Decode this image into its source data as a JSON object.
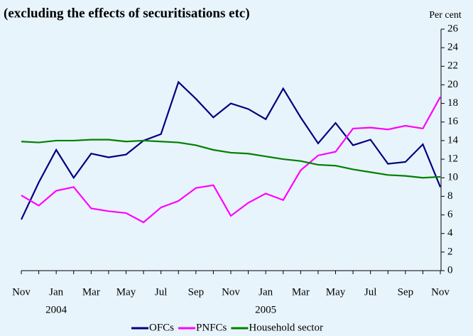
{
  "chart_data": {
    "type": "line",
    "subtitle": "(excluding the effects of securitisations etc)",
    "y_label": "Per cent",
    "categories": [
      [
        "Nov"
      ],
      null,
      [
        "Jan",
        "2004"
      ],
      null,
      [
        "Mar"
      ],
      null,
      [
        "May"
      ],
      null,
      [
        "Jul"
      ],
      null,
      [
        "Sep"
      ],
      null,
      [
        "Nov"
      ],
      null,
      [
        "Jan",
        "2005"
      ],
      null,
      [
        "Mar"
      ],
      null,
      [
        "May"
      ],
      null,
      [
        "Jul"
      ],
      null,
      [
        "Sep"
      ],
      null,
      [
        "Nov"
      ]
    ],
    "series": [
      {
        "name": "OFCs",
        "color": "#000080",
        "values": [
          5.5,
          9.5,
          13.0,
          10.0,
          12.6,
          12.2,
          12.5,
          14.0,
          14.7,
          20.3,
          18.5,
          16.5,
          18.0,
          17.4,
          16.3,
          19.6,
          16.5,
          13.7,
          15.9,
          13.5,
          14.1,
          11.5,
          11.7,
          13.6,
          9.0
        ]
      },
      {
        "name": "PNFCs",
        "color": "#ff00ff",
        "values": [
          8.1,
          7.0,
          8.6,
          9.0,
          6.7,
          6.4,
          6.2,
          5.2,
          6.8,
          7.5,
          8.9,
          9.2,
          5.9,
          7.3,
          8.3,
          7.6,
          10.8,
          12.4,
          12.8,
          15.3,
          15.4,
          15.2,
          15.6,
          15.3,
          18.7
        ]
      },
      {
        "name": "Household sector",
        "color": "#008000",
        "values": [
          13.9,
          13.8,
          14.0,
          14.0,
          14.1,
          14.1,
          13.9,
          14.0,
          13.9,
          13.8,
          13.5,
          13.0,
          12.7,
          12.6,
          12.3,
          12.0,
          11.8,
          11.4,
          11.3,
          10.9,
          10.6,
          10.3,
          10.2,
          10.0,
          10.1
        ]
      }
    ],
    "ylim": [
      0,
      26
    ],
    "yticks": [
      0,
      2,
      4,
      6,
      8,
      10,
      12,
      14,
      16,
      18,
      20,
      22,
      24,
      26
    ],
    "legend": "bottom"
  }
}
